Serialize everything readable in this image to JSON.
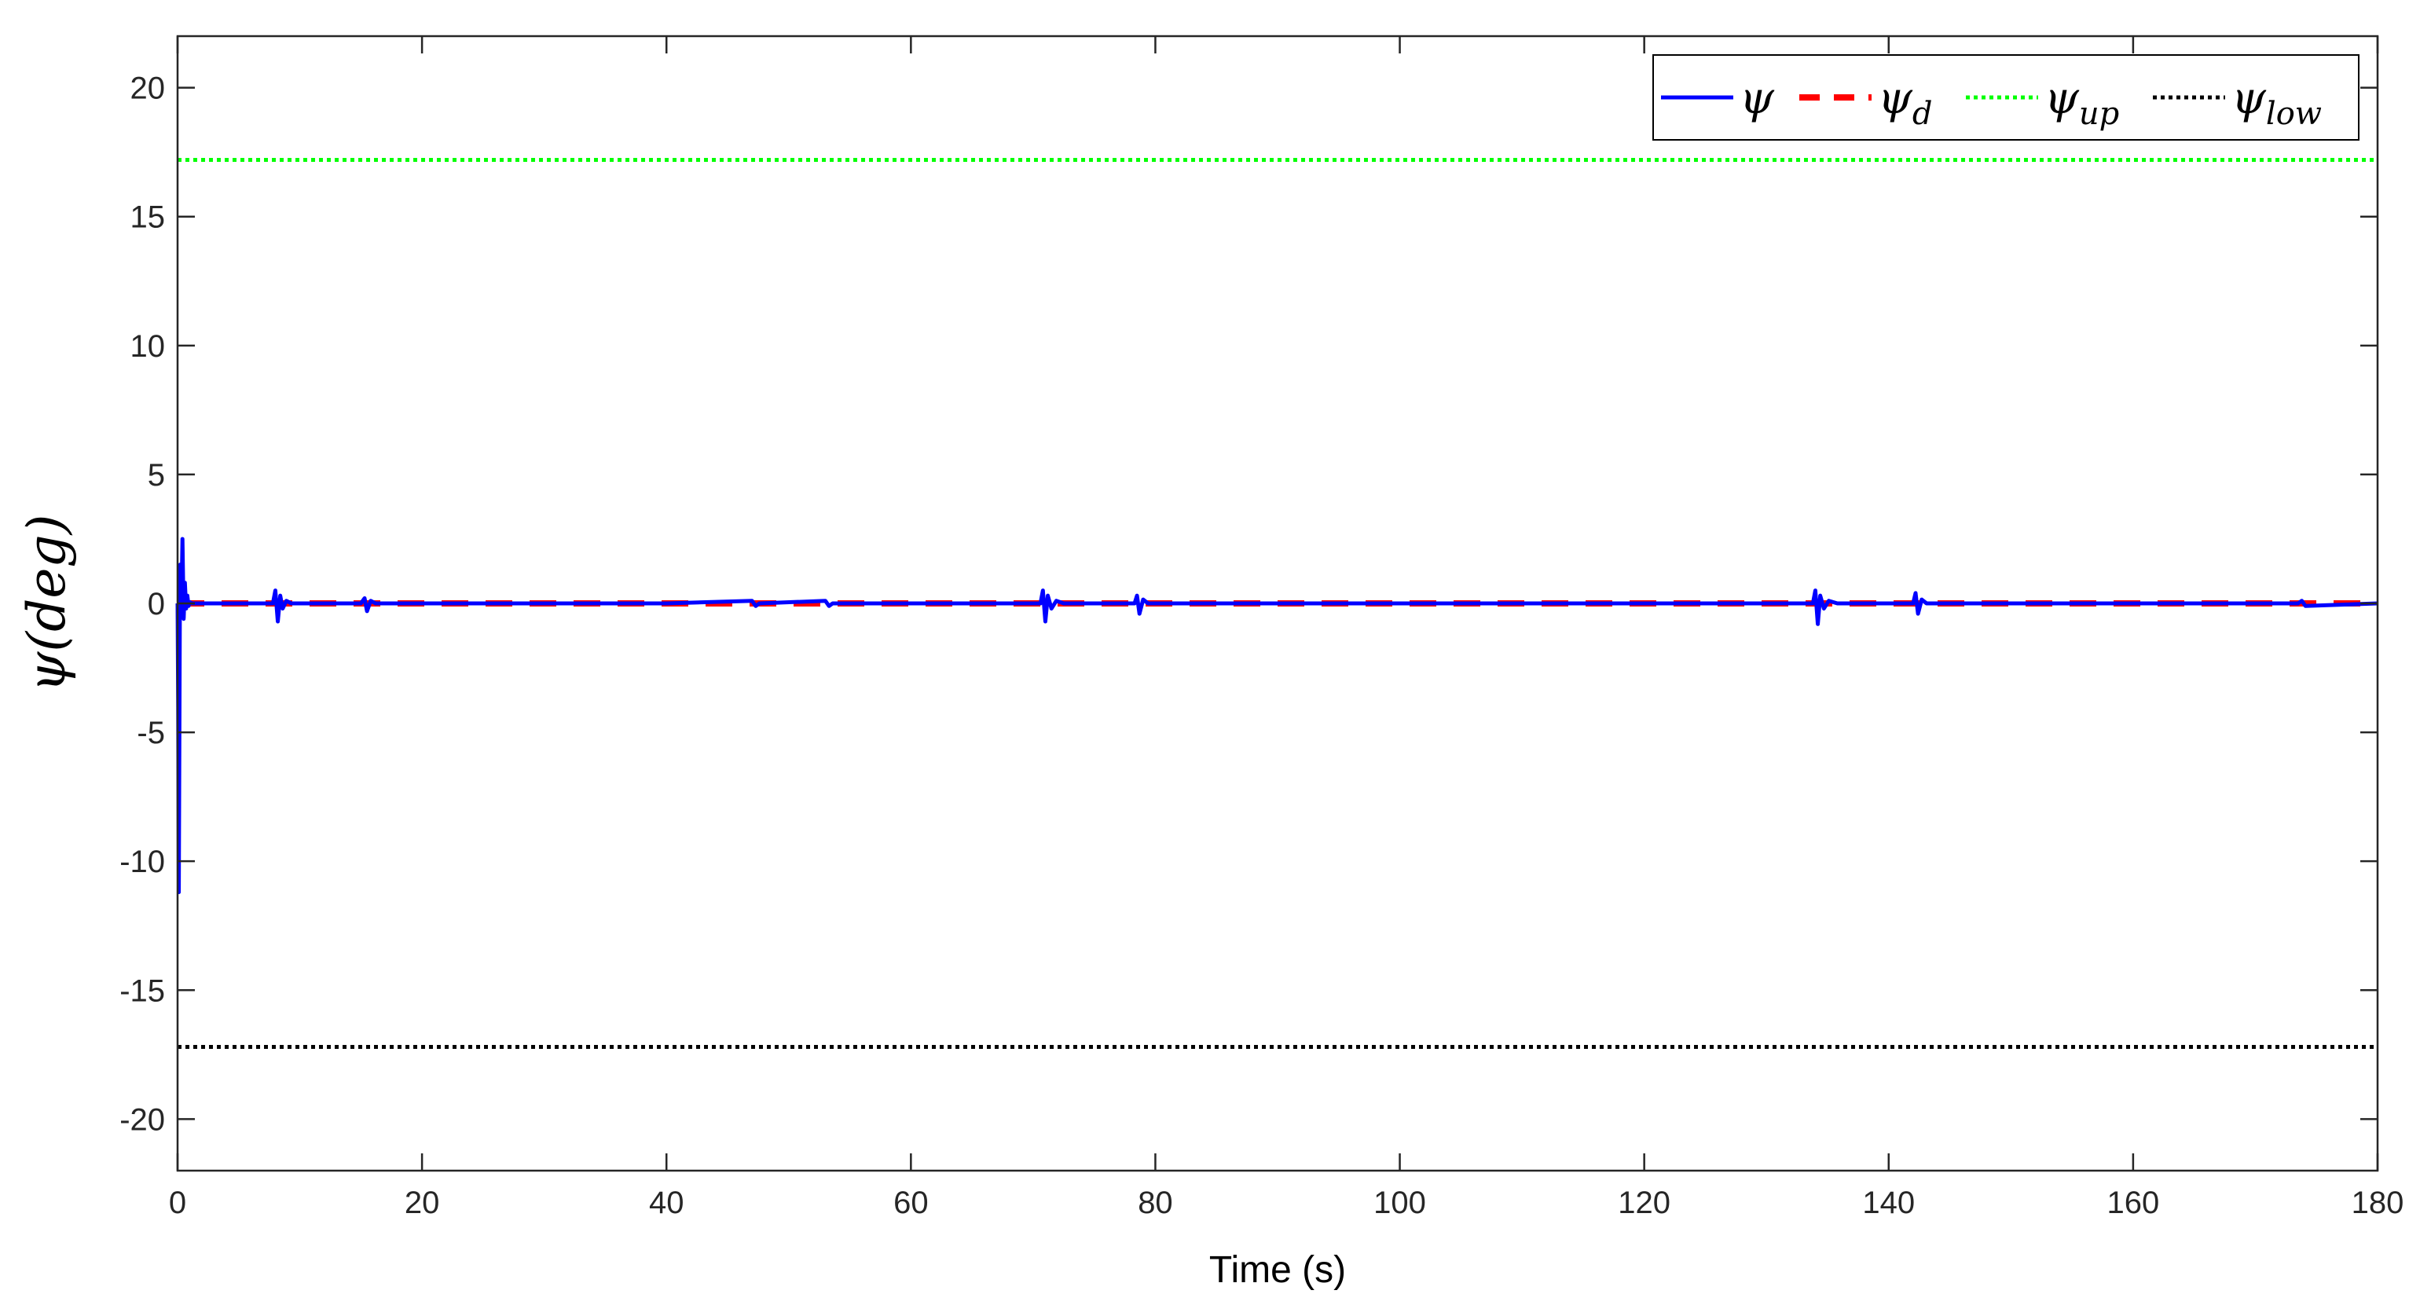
{
  "chart_data": {
    "type": "line",
    "xlabel": "Time (s)",
    "ylabel_symbol": "ψ",
    "ylabel_args": "(deg)",
    "xlim": [
      0,
      180
    ],
    "ylim": [
      -22,
      22
    ],
    "xticks": [
      0,
      20,
      40,
      60,
      80,
      100,
      120,
      140,
      160,
      180
    ],
    "yticks": [
      -20,
      -15,
      -10,
      -5,
      0,
      5,
      10,
      15,
      20
    ],
    "grid": false,
    "legend_position": "top-right",
    "series": [
      {
        "name": "ψ",
        "subscript": "",
        "color": "#0000ff",
        "style": "solid",
        "x": [
          0,
          0.05,
          0.1,
          0.15,
          0.2,
          0.3,
          0.4,
          0.5,
          0.6,
          0.7,
          0.8,
          0.9,
          1.0,
          1.2,
          1.5,
          2.0,
          3.0,
          5.0,
          7.8,
          8.0,
          8.2,
          8.4,
          8.6,
          8.9,
          9.3,
          10.0,
          15.0,
          15.3,
          15.5,
          15.8,
          16.2,
          20.0,
          40.0,
          47.0,
          47.3,
          47.6,
          53.0,
          53.3,
          53.6,
          60.0,
          70.6,
          70.8,
          71.0,
          71.2,
          71.5,
          71.9,
          72.5,
          78.3,
          78.5,
          78.7,
          79.0,
          79.4,
          85.0,
          100.0,
          120.0,
          133.8,
          134.0,
          134.2,
          134.4,
          134.7,
          135.1,
          135.8,
          142.0,
          142.2,
          142.4,
          142.7,
          143.1,
          160.0,
          173.5,
          173.8,
          174.1,
          180.0
        ],
        "y": [
          0,
          -4.0,
          -11.2,
          -5.0,
          1.5,
          -0.4,
          2.5,
          -0.6,
          0.8,
          -0.2,
          0.3,
          -0.1,
          0.05,
          0,
          0,
          0,
          0,
          0,
          0,
          0.5,
          -0.7,
          0.3,
          -0.2,
          0.1,
          0,
          0,
          0,
          0.2,
          -0.3,
          0.1,
          0,
          0,
          0,
          0.1,
          -0.1,
          0,
          0.1,
          -0.1,
          0,
          0,
          0,
          0.5,
          -0.7,
          0.3,
          -0.2,
          0.1,
          0,
          0,
          0.3,
          -0.4,
          0.15,
          0,
          0,
          0,
          0,
          0,
          0.5,
          -0.8,
          0.3,
          -0.2,
          0.1,
          0,
          0,
          0.4,
          -0.4,
          0.15,
          0,
          0,
          0,
          0.1,
          -0.1,
          0
        ]
      },
      {
        "name": "ψ",
        "subscript": "d",
        "color": "#ff0000",
        "style": "dashed",
        "x": [
          0,
          180
        ],
        "y": [
          0,
          0
        ]
      },
      {
        "name": "ψ",
        "subscript": "up",
        "color": "#00ff00",
        "style": "dotted",
        "x": [
          0,
          180
        ],
        "y": [
          17.2,
          17.2
        ]
      },
      {
        "name": "ψ",
        "subscript": "low",
        "color": "#000000",
        "style": "dotted",
        "x": [
          0,
          180
        ],
        "y": [
          -17.2,
          -17.2
        ]
      }
    ]
  }
}
